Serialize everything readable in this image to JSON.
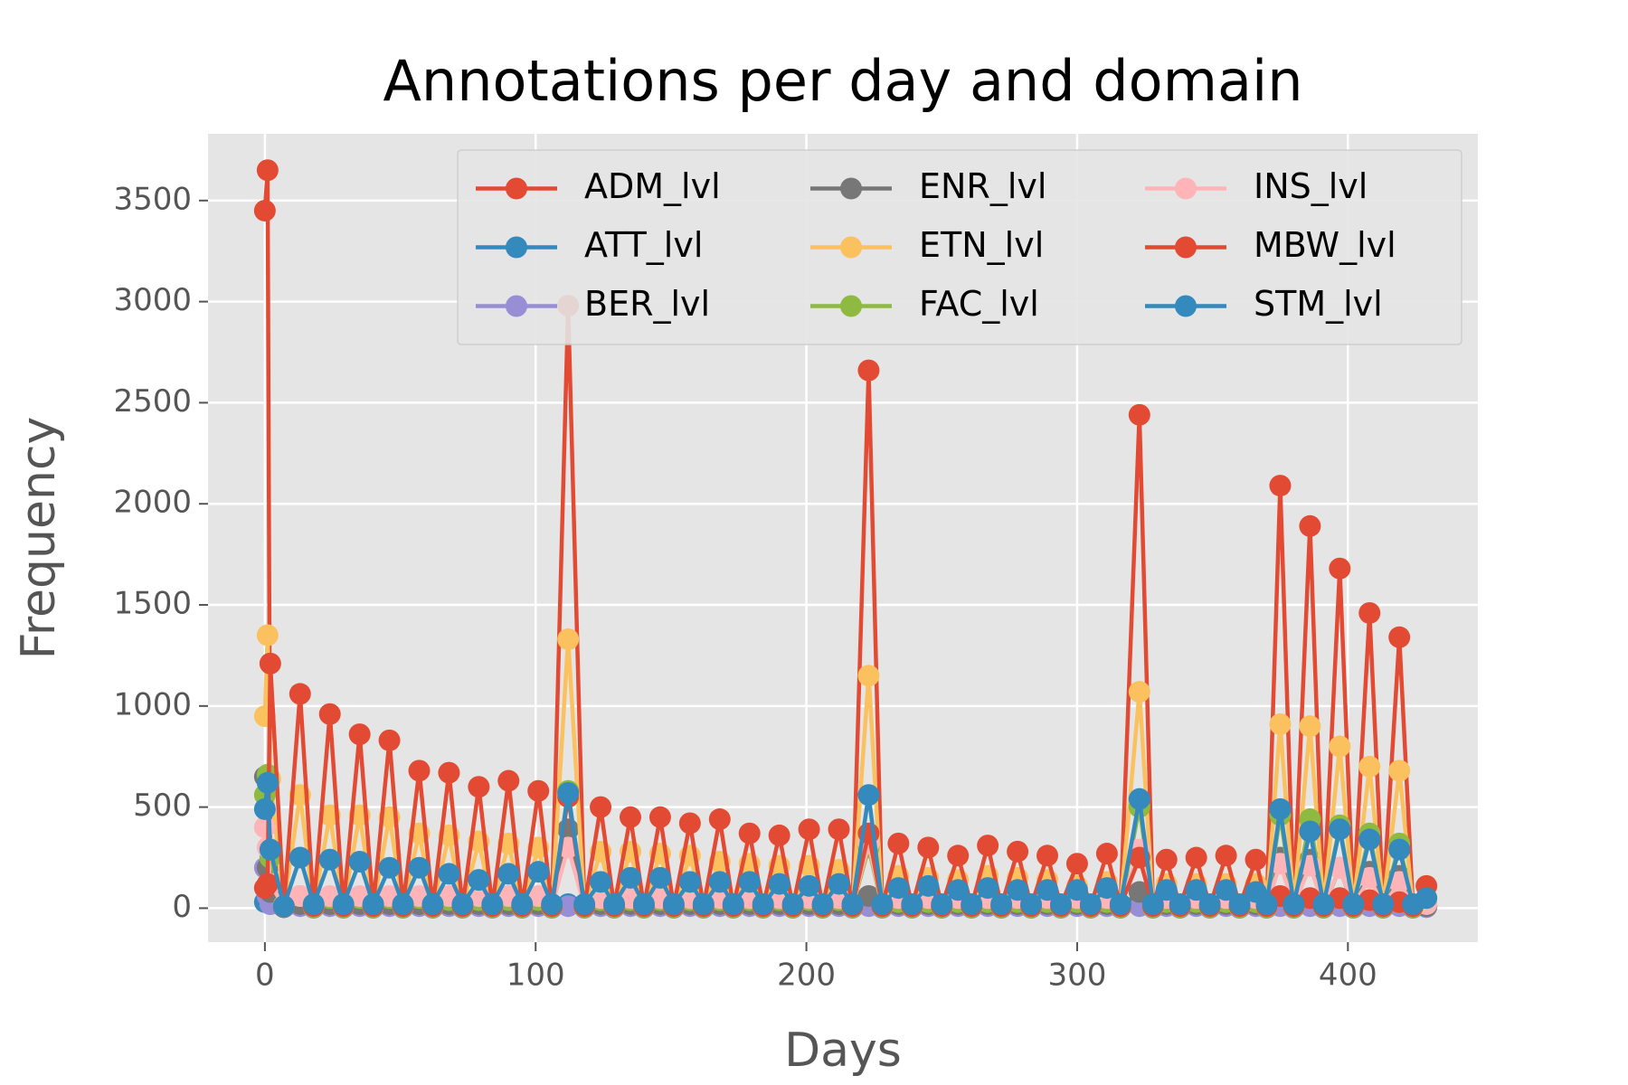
{
  "chart_data": {
    "type": "line",
    "title": "Annotations per day and domain",
    "x_label": "Days",
    "y_label": "Frequency",
    "x": [
      0,
      1,
      2,
      7,
      13,
      18,
      24,
      29,
      35,
      40,
      46,
      51,
      57,
      62,
      68,
      73,
      79,
      84,
      90,
      95,
      101,
      106,
      112,
      118,
      124,
      129,
      135,
      140,
      146,
      151,
      157,
      162,
      168,
      173,
      179,
      184,
      190,
      195,
      201,
      206,
      212,
      217,
      223,
      228,
      234,
      239,
      245,
      250,
      256,
      261,
      267,
      272,
      278,
      283,
      289,
      294,
      300,
      305,
      311,
      316,
      323,
      328,
      333,
      338,
      344,
      349,
      355,
      360,
      366,
      370,
      375,
      380,
      386,
      391,
      397,
      402,
      408,
      413,
      419,
      424,
      429
    ],
    "series": [
      {
        "name": "ADM_lvl",
        "color": "#E24A33",
        "values": [
          3450,
          3650,
          280,
          10,
          20,
          5,
          20,
          5,
          20,
          5,
          20,
          5,
          20,
          5,
          20,
          5,
          20,
          5,
          20,
          5,
          20,
          5,
          2980,
          10,
          20,
          5,
          20,
          5,
          20,
          5,
          20,
          5,
          20,
          5,
          20,
          5,
          20,
          5,
          20,
          5,
          20,
          5,
          2660,
          10,
          20,
          5,
          20,
          5,
          20,
          5,
          20,
          5,
          20,
          5,
          20,
          5,
          20,
          5,
          20,
          5,
          2440,
          10,
          20,
          5,
          20,
          5,
          20,
          5,
          20,
          5,
          2090,
          30,
          1890,
          30,
          1680,
          30,
          1460,
          30,
          1340,
          20,
          10
        ]
      },
      {
        "name": "ATT_lvl",
        "color": "#348ABD",
        "values": [
          30,
          40,
          20,
          5,
          20,
          5,
          20,
          5,
          20,
          5,
          20,
          5,
          20,
          5,
          20,
          5,
          20,
          5,
          20,
          5,
          20,
          5,
          20,
          5,
          20,
          5,
          20,
          5,
          20,
          5,
          20,
          5,
          20,
          5,
          20,
          5,
          20,
          5,
          20,
          5,
          20,
          5,
          20,
          5,
          20,
          5,
          20,
          5,
          20,
          5,
          20,
          5,
          20,
          5,
          20,
          5,
          20,
          5,
          20,
          5,
          20,
          5,
          20,
          5,
          20,
          5,
          20,
          5,
          20,
          5,
          20,
          5,
          20,
          5,
          20,
          5,
          20,
          5,
          20,
          5,
          10
        ]
      },
      {
        "name": "BER_lvl",
        "color": "#988ED5",
        "values": [
          200,
          60,
          20,
          5,
          10,
          2,
          10,
          2,
          10,
          2,
          10,
          2,
          10,
          2,
          10,
          2,
          10,
          2,
          10,
          2,
          10,
          2,
          10,
          2,
          10,
          2,
          10,
          2,
          10,
          2,
          10,
          2,
          10,
          2,
          10,
          2,
          10,
          2,
          10,
          2,
          10,
          2,
          10,
          2,
          10,
          2,
          10,
          2,
          10,
          2,
          10,
          2,
          10,
          2,
          10,
          2,
          10,
          2,
          10,
          2,
          10,
          2,
          10,
          2,
          10,
          2,
          10,
          2,
          10,
          2,
          10,
          2,
          10,
          2,
          10,
          2,
          10,
          2,
          10,
          2,
          5
        ]
      },
      {
        "name": "ENR_lvl",
        "color": "#777777",
        "values": [
          650,
          200,
          80,
          5,
          20,
          5,
          20,
          5,
          20,
          5,
          20,
          5,
          20,
          5,
          20,
          5,
          20,
          5,
          20,
          5,
          20,
          5,
          390,
          5,
          20,
          5,
          20,
          5,
          20,
          5,
          20,
          5,
          20,
          5,
          20,
          5,
          20,
          5,
          20,
          5,
          20,
          5,
          60,
          5,
          20,
          5,
          20,
          5,
          20,
          5,
          20,
          5,
          20,
          5,
          20,
          5,
          20,
          5,
          20,
          5,
          80,
          5,
          20,
          5,
          20,
          5,
          20,
          5,
          20,
          5,
          250,
          5,
          240,
          5,
          200,
          5,
          180,
          5,
          160,
          5,
          10
        ]
      },
      {
        "name": "ETN_lvl",
        "color": "#FBC15E",
        "values": [
          950,
          1350,
          640,
          15,
          560,
          10,
          460,
          10,
          460,
          10,
          450,
          10,
          370,
          10,
          360,
          10,
          330,
          10,
          320,
          10,
          300,
          10,
          1330,
          10,
          280,
          10,
          280,
          10,
          270,
          10,
          260,
          10,
          230,
          10,
          220,
          10,
          210,
          10,
          210,
          10,
          190,
          10,
          1150,
          10,
          160,
          10,
          150,
          10,
          140,
          10,
          160,
          10,
          150,
          10,
          140,
          10,
          110,
          10,
          130,
          10,
          1070,
          10,
          120,
          10,
          120,
          10,
          120,
          10,
          120,
          10,
          910,
          10,
          900,
          10,
          800,
          10,
          700,
          10,
          680,
          10,
          50
        ]
      },
      {
        "name": "FAC_lvl",
        "color": "#8EBA42",
        "values": [
          560,
          660,
          250,
          10,
          60,
          5,
          50,
          5,
          50,
          5,
          50,
          5,
          50,
          5,
          40,
          5,
          40,
          5,
          40,
          5,
          40,
          5,
          580,
          5,
          40,
          5,
          40,
          5,
          40,
          5,
          40,
          5,
          40,
          5,
          40,
          5,
          40,
          5,
          40,
          5,
          40,
          5,
          300,
          5,
          30,
          5,
          30,
          5,
          30,
          5,
          30,
          5,
          30,
          5,
          30,
          5,
          30,
          5,
          30,
          5,
          500,
          5,
          30,
          5,
          30,
          5,
          30,
          5,
          30,
          5,
          460,
          5,
          440,
          5,
          410,
          5,
          370,
          5,
          320,
          5,
          20
        ]
      },
      {
        "name": "INS_lvl",
        "color": "#FFB5B8",
        "values": [
          400,
          300,
          120,
          10,
          60,
          10,
          60,
          10,
          60,
          10,
          60,
          10,
          60,
          10,
          60,
          10,
          60,
          10,
          60,
          10,
          60,
          10,
          300,
          10,
          50,
          10,
          50,
          10,
          50,
          10,
          50,
          10,
          50,
          10,
          50,
          10,
          50,
          10,
          50,
          10,
          50,
          10,
          320,
          10,
          50,
          10,
          50,
          10,
          50,
          10,
          50,
          10,
          50,
          10,
          50,
          10,
          50,
          10,
          50,
          10,
          290,
          10,
          50,
          10,
          50,
          10,
          50,
          10,
          50,
          10,
          220,
          10,
          210,
          10,
          200,
          10,
          150,
          10,
          130,
          10,
          20
        ]
      },
      {
        "name": "MBW_lvl",
        "color": "#E24A33",
        "values": [
          100,
          120,
          1210,
          10,
          1060,
          10,
          960,
          10,
          860,
          10,
          830,
          10,
          680,
          10,
          670,
          10,
          600,
          10,
          630,
          10,
          580,
          10,
          550,
          10,
          500,
          10,
          450,
          10,
          450,
          10,
          420,
          10,
          440,
          10,
          370,
          10,
          360,
          10,
          390,
          10,
          390,
          10,
          370,
          10,
          320,
          10,
          300,
          10,
          260,
          10,
          310,
          10,
          280,
          10,
          260,
          10,
          220,
          10,
          270,
          10,
          250,
          10,
          240,
          10,
          250,
          10,
          260,
          10,
          240,
          10,
          60,
          10,
          50,
          10,
          50,
          10,
          40,
          10,
          30,
          10,
          110
        ]
      },
      {
        "name": "STM_lvl",
        "color": "#348ABD",
        "values": [
          490,
          620,
          290,
          10,
          250,
          20,
          240,
          20,
          230,
          20,
          200,
          20,
          200,
          20,
          170,
          20,
          140,
          20,
          170,
          20,
          180,
          20,
          570,
          20,
          130,
          20,
          150,
          20,
          150,
          20,
          130,
          20,
          130,
          20,
          130,
          20,
          120,
          20,
          110,
          20,
          120,
          20,
          560,
          20,
          100,
          20,
          110,
          20,
          90,
          20,
          100,
          20,
          90,
          20,
          90,
          20,
          90,
          20,
          100,
          20,
          540,
          20,
          90,
          20,
          90,
          20,
          90,
          20,
          80,
          20,
          490,
          20,
          380,
          20,
          390,
          20,
          340,
          20,
          290,
          20,
          50
        ]
      }
    ],
    "xlim": [
      -21,
      448
    ],
    "xticks": [
      0,
      100,
      200,
      300,
      400
    ],
    "ylim": [
      -168,
      3830
    ],
    "yticks": [
      0,
      500,
      1000,
      1500,
      2000,
      2500,
      3000,
      3500
    ],
    "grid": true,
    "legend": "upper right",
    "legend_columns": 3
  }
}
